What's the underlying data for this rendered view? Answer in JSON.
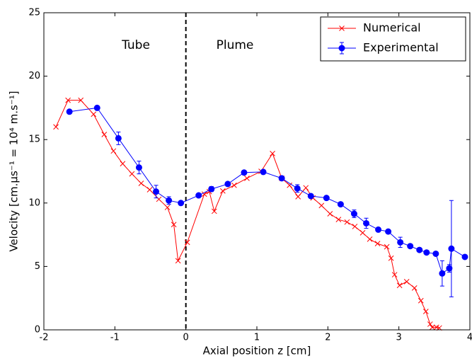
{
  "chart_data": {
    "type": "line",
    "xlabel": "Axial position z [cm]",
    "ylabel": "Velocity [cm.μs⁻¹ = 10⁴ m.s⁻¹]",
    "annotations": [
      "Tube",
      "Plume"
    ],
    "vline": 0,
    "xlim": [
      -2,
      4
    ],
    "xticks": [
      -2,
      -1,
      0,
      1,
      2,
      3,
      4
    ],
    "ylim": [
      0,
      25
    ],
    "yticks": [
      0,
      5,
      10,
      15,
      20,
      25
    ],
    "legend": "upper right",
    "series": [
      {
        "name": "Numerical",
        "color": "#ff0000",
        "marker": "x",
        "x": [
          -1.83,
          -1.66,
          -1.48,
          -1.3,
          -1.15,
          -1.02,
          -0.89,
          -0.76,
          -0.63,
          -0.51,
          -0.38,
          -0.26,
          -0.17,
          -0.11,
          0.02,
          0.26,
          0.33,
          0.4,
          0.52,
          0.68,
          0.86,
          1.06,
          1.22,
          1.35,
          1.46,
          1.58,
          1.69,
          1.79,
          1.91,
          2.03,
          2.15,
          2.27,
          2.38,
          2.49,
          2.59,
          2.7,
          2.83,
          2.89,
          2.94,
          3.01,
          3.11,
          3.22,
          3.31,
          3.38,
          3.44,
          3.47,
          3.53,
          3.57
        ],
        "values": [
          16.0,
          18.1,
          18.1,
          17.0,
          15.4,
          14.1,
          13.1,
          12.3,
          11.55,
          11.05,
          10.3,
          9.65,
          8.3,
          5.45,
          6.9,
          10.7,
          10.9,
          9.35,
          10.95,
          11.4,
          11.95,
          12.5,
          13.9,
          11.95,
          11.4,
          10.5,
          11.2,
          10.4,
          9.8,
          9.15,
          8.7,
          8.5,
          8.15,
          7.65,
          7.15,
          6.8,
          6.55,
          5.65,
          4.35,
          3.5,
          3.8,
          3.3,
          2.3,
          1.45,
          0.45,
          0.2,
          0.2,
          0.15
        ]
      },
      {
        "name": "Experimental",
        "color": "#0000ff",
        "marker": "o",
        "x": [
          -1.64,
          -1.25,
          -0.95,
          -0.66,
          -0.42,
          -0.24,
          -0.07,
          0.18,
          0.36,
          0.59,
          0.82,
          1.09,
          1.35,
          1.57,
          1.76,
          1.98,
          2.18,
          2.37,
          2.54,
          2.71,
          2.85,
          3.02,
          3.16,
          3.29,
          3.39,
          3.52,
          3.61,
          3.71,
          3.74,
          3.93
        ],
        "values": [
          17.2,
          17.5,
          15.1,
          12.8,
          10.9,
          10.2,
          10.0,
          10.6,
          11.1,
          11.5,
          12.4,
          12.45,
          11.95,
          11.15,
          10.55,
          10.4,
          9.9,
          9.15,
          8.4,
          7.9,
          7.75,
          6.9,
          6.6,
          6.3,
          6.1,
          6.0,
          4.45,
          4.85,
          6.4,
          5.75
        ],
        "errors": [
          0.1,
          0.1,
          0.5,
          0.5,
          0.5,
          0.3,
          0.1,
          0.1,
          0.2,
          0.1,
          0.1,
          0.1,
          0.1,
          0.3,
          0.1,
          0.1,
          0.1,
          0.3,
          0.4,
          0.1,
          0.1,
          0.4,
          0.1,
          0.1,
          0.1,
          0.1,
          1.0,
          0.3,
          3.8,
          0.1
        ]
      }
    ]
  }
}
